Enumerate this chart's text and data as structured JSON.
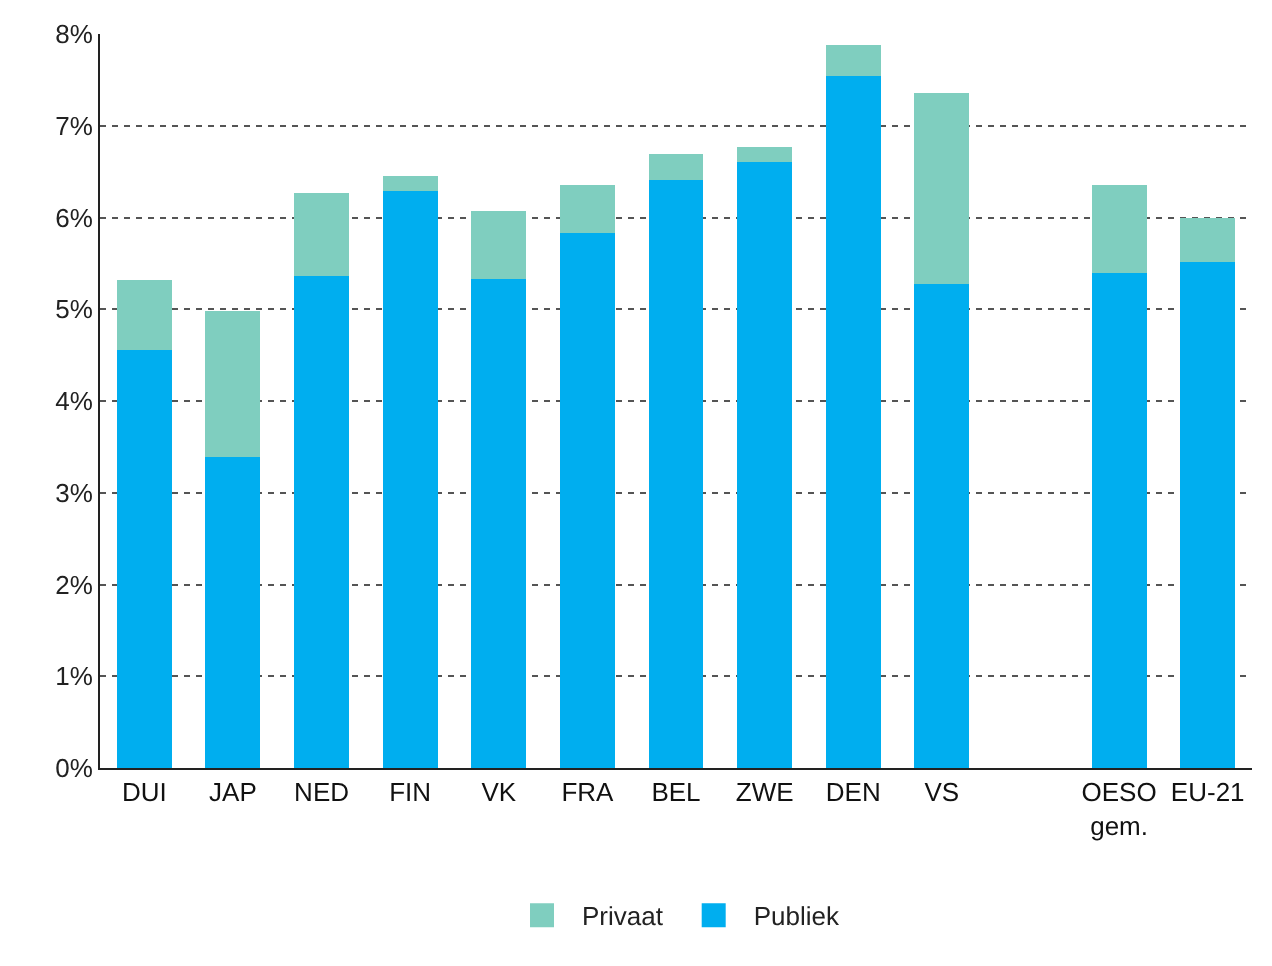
{
  "chart_data": {
    "type": "bar",
    "stacked": true,
    "categories": [
      "DUI",
      "JAP",
      "NED",
      "FIN",
      "VK",
      "FRA",
      "BEL",
      "ZWE",
      "DEN",
      "VS",
      null,
      "OESO gem.",
      "EU-21"
    ],
    "series": [
      {
        "name": "Publiek",
        "color": "#00aeef",
        "values": [
          4.56,
          3.39,
          5.36,
          6.29,
          5.33,
          5.83,
          6.41,
          6.61,
          7.54,
          5.28,
          null,
          5.4,
          5.52
        ]
      },
      {
        "name": "Privaat",
        "color": "#7fcebf",
        "values": [
          0.76,
          1.59,
          0.91,
          0.16,
          0.74,
          0.52,
          0.28,
          0.16,
          0.34,
          2.08,
          null,
          0.95,
          0.47
        ]
      }
    ],
    "ylim": [
      0,
      8
    ],
    "yticks": [
      {
        "value": 0,
        "label": "0%"
      },
      {
        "value": 1,
        "label": "1%"
      },
      {
        "value": 2,
        "label": "2%"
      },
      {
        "value": 3,
        "label": "3%"
      },
      {
        "value": 4,
        "label": "4%"
      },
      {
        "value": 5,
        "label": "5%"
      },
      {
        "value": 6,
        "label": "6%"
      },
      {
        "value": 7,
        "label": "7%"
      },
      {
        "value": 8,
        "label": "8%"
      }
    ],
    "grid": "y",
    "legend": "bottom"
  }
}
